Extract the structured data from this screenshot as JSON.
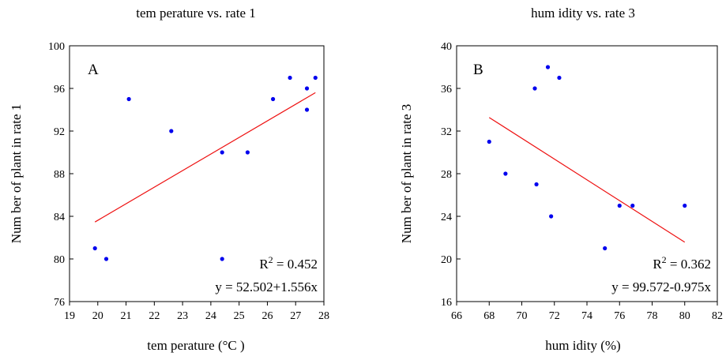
{
  "chart_data": [
    {
      "type": "scatter",
      "panel": "A",
      "title": "tem perature vs. rate 1",
      "xlabel": "tem perature (°C )",
      "ylabel": "Num ber of plant in rate 1",
      "xlim": [
        19,
        28
      ],
      "ylim": [
        76,
        100
      ],
      "xticks": [
        19,
        20,
        21,
        22,
        23,
        24,
        25,
        26,
        27,
        28
      ],
      "yticks": [
        76,
        80,
        84,
        88,
        92,
        96,
        100
      ],
      "points": [
        {
          "x": 19.9,
          "y": 81
        },
        {
          "x": 20.3,
          "y": 80
        },
        {
          "x": 21.1,
          "y": 95
        },
        {
          "x": 22.6,
          "y": 92
        },
        {
          "x": 24.4,
          "y": 90
        },
        {
          "x": 24.4,
          "y": 80
        },
        {
          "x": 25.3,
          "y": 90
        },
        {
          "x": 26.2,
          "y": 95
        },
        {
          "x": 26.8,
          "y": 97
        },
        {
          "x": 27.4,
          "y": 96
        },
        {
          "x": 27.4,
          "y": 94
        },
        {
          "x": 27.7,
          "y": 97
        }
      ],
      "fit": {
        "intercept": 52.502,
        "slope": 1.556,
        "x_range": [
          19.9,
          27.7
        ]
      },
      "r2_prefix": "R",
      "r2_sup": "2",
      "r2_value": " = 0.452",
      "equation": "y = 52.502+1.556x",
      "point_color": "#0000ee",
      "line_color": "#ee1111"
    },
    {
      "type": "scatter",
      "panel": "B",
      "title": "hum idity vs. rate 3",
      "xlabel": "hum idity (%)",
      "ylabel": "Num ber of plant in rate 3",
      "xlim": [
        66,
        82
      ],
      "ylim": [
        16,
        40
      ],
      "xticks": [
        66,
        68,
        70,
        72,
        74,
        76,
        78,
        80,
        82
      ],
      "yticks": [
        16,
        20,
        24,
        28,
        32,
        36,
        40
      ],
      "points": [
        {
          "x": 68.0,
          "y": 31
        },
        {
          "x": 69.0,
          "y": 28
        },
        {
          "x": 70.8,
          "y": 36
        },
        {
          "x": 70.9,
          "y": 27
        },
        {
          "x": 71.6,
          "y": 38
        },
        {
          "x": 71.8,
          "y": 24
        },
        {
          "x": 72.3,
          "y": 37
        },
        {
          "x": 75.1,
          "y": 21
        },
        {
          "x": 76.0,
          "y": 25
        },
        {
          "x": 76.8,
          "y": 25
        },
        {
          "x": 80.0,
          "y": 25
        }
      ],
      "fit": {
        "intercept": 99.572,
        "slope": -0.975,
        "x_range": [
          68.0,
          80.0
        ]
      },
      "r2_prefix": "R",
      "r2_sup": "2",
      "r2_value": " = 0.362",
      "equation": "y = 99.572-0.975x",
      "point_color": "#0000ee",
      "line_color": "#ee1111"
    }
  ]
}
